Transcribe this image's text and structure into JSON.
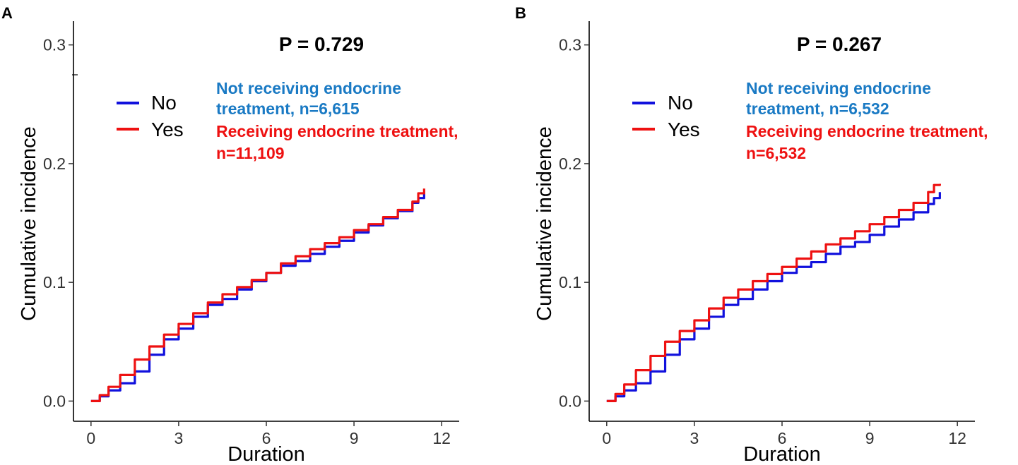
{
  "chart_data": [
    {
      "type": "line",
      "panel_label": "A",
      "title": "P = 0.729",
      "xlabel": "Duration",
      "ylabel": "Cumulative incidence",
      "xlim": [
        -0.6,
        12.6
      ],
      "ylim": [
        -0.017,
        0.32
      ],
      "xticks": [
        0,
        3,
        6,
        9,
        12
      ],
      "xtick_labels": [
        "0",
        "3",
        "6",
        "9",
        "12"
      ],
      "yticks": [
        0.0,
        0.1,
        0.2,
        0.3
      ],
      "ytick_labels": [
        "0.0",
        "0.1",
        "0.2",
        "0.3"
      ],
      "grid": false,
      "legend": {
        "position": "top-left",
        "entries": [
          "No",
          "Yes"
        ]
      },
      "annotations": {
        "no_line1": "Not receiving endocrine",
        "no_line2": "treatment, n=6,615",
        "yes_line1": "Receiving endocrine treatment,",
        "yes_line2": "n=11,109"
      },
      "series": [
        {
          "name": "No",
          "color": "#1111dd",
          "x": [
            0,
            0.3,
            0.6,
            1.0,
            1.5,
            2.0,
            2.5,
            3.0,
            3.5,
            4.0,
            4.5,
            5.0,
            5.5,
            6.0,
            6.5,
            7.0,
            7.5,
            8.0,
            8.5,
            9.0,
            9.5,
            10.0,
            10.5,
            11.0,
            11.2,
            11.4
          ],
          "values": [
            0,
            0.004,
            0.009,
            0.015,
            0.025,
            0.039,
            0.052,
            0.061,
            0.071,
            0.081,
            0.086,
            0.094,
            0.101,
            0.108,
            0.114,
            0.118,
            0.124,
            0.13,
            0.135,
            0.142,
            0.148,
            0.154,
            0.16,
            0.167,
            0.171,
            0.176
          ]
        },
        {
          "name": "Yes",
          "color": "#ee1111",
          "x": [
            0,
            0.3,
            0.6,
            1.0,
            1.5,
            2.0,
            2.5,
            3.0,
            3.5,
            4.0,
            4.5,
            5.0,
            5.5,
            6.0,
            6.5,
            7.0,
            7.5,
            8.0,
            8.5,
            9.0,
            9.5,
            10.0,
            10.5,
            11.0,
            11.2,
            11.4
          ],
          "values": [
            0,
            0.005,
            0.012,
            0.022,
            0.035,
            0.046,
            0.056,
            0.065,
            0.074,
            0.083,
            0.09,
            0.096,
            0.102,
            0.108,
            0.116,
            0.122,
            0.128,
            0.133,
            0.138,
            0.144,
            0.149,
            0.155,
            0.161,
            0.168,
            0.175,
            0.179
          ]
        }
      ]
    },
    {
      "type": "line",
      "panel_label": "B",
      "title": "P = 0.267",
      "xlabel": "Duration",
      "ylabel": "Cumulative incidence",
      "xlim": [
        -0.6,
        12.6
      ],
      "ylim": [
        -0.017,
        0.32
      ],
      "xticks": [
        0,
        3,
        6,
        9,
        12
      ],
      "xtick_labels": [
        "0",
        "3",
        "6",
        "9",
        "12"
      ],
      "yticks": [
        0.0,
        0.1,
        0.2,
        0.3
      ],
      "ytick_labels": [
        "0.0",
        "0.1",
        "0.2",
        "0.3"
      ],
      "grid": false,
      "legend": {
        "position": "top-left",
        "entries": [
          "No",
          "Yes"
        ]
      },
      "annotations": {
        "no_line1": "Not receiving endocrine",
        "no_line2": "treatment, n=6,532",
        "yes_line1": "Receiving endocrine treatment,",
        "yes_line2": "n=6,532"
      },
      "series": [
        {
          "name": "No",
          "color": "#1111dd",
          "x": [
            0,
            0.3,
            0.6,
            1.0,
            1.5,
            2.0,
            2.5,
            3.0,
            3.5,
            4.0,
            4.5,
            5.0,
            5.5,
            6.0,
            6.5,
            7.0,
            7.5,
            8.0,
            8.5,
            9.0,
            9.5,
            10.0,
            10.5,
            11.0,
            11.2,
            11.4
          ],
          "values": [
            0,
            0.004,
            0.009,
            0.015,
            0.025,
            0.039,
            0.052,
            0.061,
            0.071,
            0.081,
            0.086,
            0.094,
            0.101,
            0.108,
            0.113,
            0.117,
            0.124,
            0.13,
            0.134,
            0.14,
            0.147,
            0.153,
            0.159,
            0.166,
            0.171,
            0.176
          ]
        },
        {
          "name": "Yes",
          "color": "#ee1111",
          "x": [
            0,
            0.3,
            0.6,
            1.0,
            1.5,
            2.0,
            2.5,
            3.0,
            3.5,
            4.0,
            4.5,
            5.0,
            5.5,
            6.0,
            6.5,
            7.0,
            7.5,
            8.0,
            8.5,
            9.0,
            9.5,
            10.0,
            10.5,
            11.0,
            11.2,
            11.4
          ],
          "values": [
            0,
            0.006,
            0.014,
            0.026,
            0.038,
            0.05,
            0.059,
            0.068,
            0.078,
            0.087,
            0.094,
            0.101,
            0.107,
            0.113,
            0.12,
            0.126,
            0.132,
            0.137,
            0.143,
            0.149,
            0.155,
            0.161,
            0.167,
            0.176,
            0.182,
            0.183
          ]
        }
      ]
    }
  ]
}
